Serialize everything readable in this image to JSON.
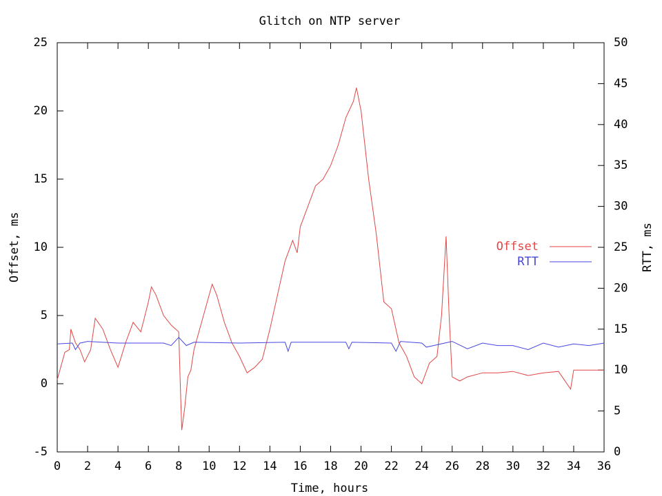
{
  "chart_data": {
    "type": "line",
    "title": "Glitch on NTP server",
    "xlabel": "Time, hours",
    "ylabel": "Offset, ms",
    "y2label": "RTT, ms",
    "xlim": [
      0,
      36
    ],
    "xticks": [
      0,
      2,
      4,
      6,
      8,
      10,
      12,
      14,
      16,
      18,
      20,
      22,
      24,
      26,
      28,
      30,
      32,
      34,
      36
    ],
    "ylim": [
      -5,
      25
    ],
    "yticks": [
      -5,
      0,
      5,
      10,
      15,
      20,
      25
    ],
    "y2lim": [
      0,
      50
    ],
    "y2ticks": [
      0,
      5,
      10,
      15,
      20,
      25,
      30,
      35,
      40,
      45,
      50
    ],
    "legend": "right",
    "series": [
      {
        "name": "Offset",
        "color": "#e04545",
        "x": [
          0,
          0.5,
          0.8,
          0.9,
          1.2,
          1.5,
          1.8,
          2.2,
          2.5,
          3,
          3.5,
          4,
          4.5,
          5,
          5.5,
          6,
          6.2,
          6.5,
          7,
          7.5,
          8,
          8.1,
          8.2,
          8.4,
          8.6,
          8.8,
          9,
          9.5,
          10,
          10.2,
          10.5,
          11,
          11.5,
          12,
          12.5,
          13,
          13.5,
          14,
          14.5,
          15,
          15.5,
          15.8,
          16,
          16.5,
          17,
          17.5,
          18,
          18.5,
          19,
          19.5,
          19.7,
          20,
          20.5,
          21,
          21.5,
          22,
          22.5,
          23,
          23.5,
          24,
          24.5,
          25,
          25.3,
          25.6,
          25.8,
          26,
          26.5,
          27,
          28,
          29,
          30,
          31,
          32,
          33,
          33.8,
          34,
          35,
          36
        ],
        "values": [
          0.3,
          2.3,
          2.5,
          4,
          3,
          2.5,
          1.6,
          2.5,
          4.8,
          4,
          2.5,
          1.2,
          3,
          4.5,
          3.8,
          6,
          7.1,
          6.5,
          5,
          4.3,
          3.8,
          0,
          -3.4,
          -1.7,
          0.5,
          1,
          2.5,
          4.5,
          6.5,
          7.3,
          6.5,
          4.5,
          3,
          2,
          0.8,
          1.2,
          1.8,
          4,
          6.5,
          9,
          10.5,
          9.6,
          11.5,
          13,
          14.5,
          15,
          16,
          17.5,
          19.5,
          20.7,
          21.7,
          20,
          15,
          11,
          6,
          5.5,
          3,
          2,
          0.5,
          0,
          1.5,
          2,
          5,
          10.8,
          5,
          0.5,
          0.2,
          0.5,
          0.8,
          0.8,
          0.9,
          0.6,
          0.8,
          0.9,
          -0.4,
          1,
          1,
          1
        ]
      },
      {
        "name": "RTT",
        "color": "#4545e0",
        "axis": "y2",
        "x": [
          0,
          1,
          1.2,
          1.5,
          2,
          4,
          7,
          7.5,
          8,
          8.5,
          9,
          12,
          15,
          15.2,
          15.4,
          19,
          19.2,
          19.4,
          22,
          22.3,
          22.6,
          24,
          24.3,
          26,
          27,
          28,
          29,
          30,
          31,
          32,
          33,
          34,
          35,
          36
        ],
        "values": [
          13.2,
          13.3,
          12.5,
          13.3,
          13.5,
          13.3,
          13.3,
          13,
          14,
          13,
          13.4,
          13.3,
          13.4,
          12.3,
          13.4,
          13.4,
          12.6,
          13.4,
          13.3,
          12.3,
          13.5,
          13.3,
          12.8,
          13.5,
          12.6,
          13.3,
          13,
          13,
          12.5,
          13.3,
          12.8,
          13.2,
          13,
          13.3
        ]
      }
    ]
  }
}
